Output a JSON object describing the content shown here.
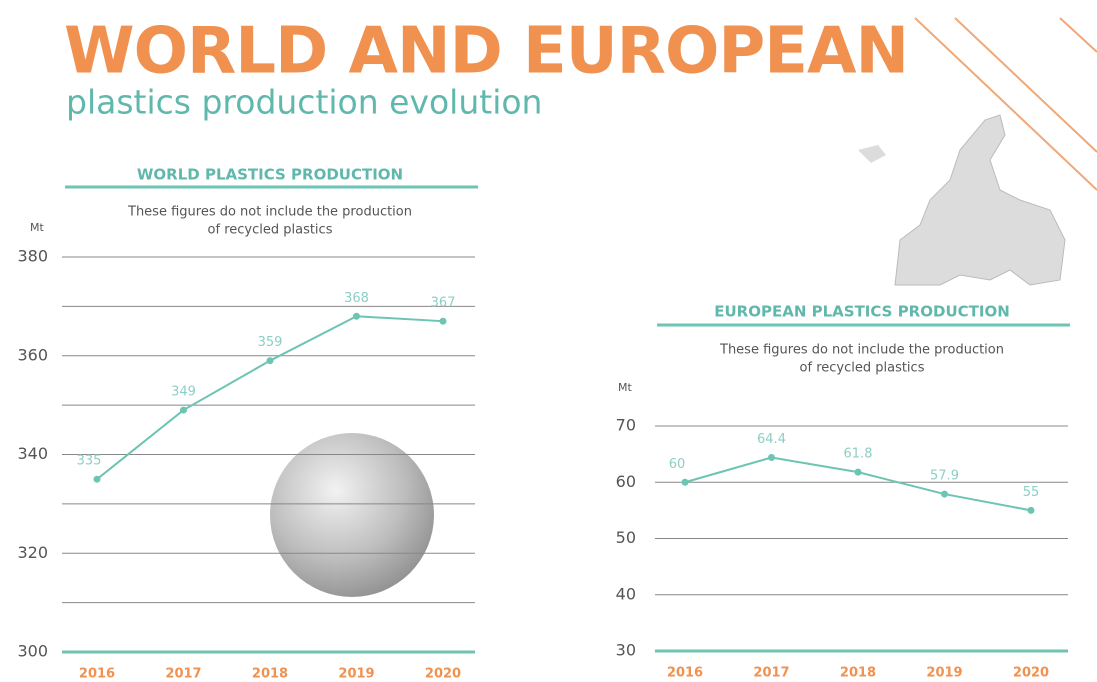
{
  "header": {
    "title": "WORLD AND EUROPEAN",
    "subtitle": "plastics production evolution"
  },
  "chart_data": [
    {
      "type": "line",
      "title": "WORLD PLASTICS PRODUCTION",
      "subtitle": [
        "These figures do not include the production",
        "of recycled plastics"
      ],
      "y_label": "Mt",
      "categories": [
        "2016",
        "2017",
        "2018",
        "2019",
        "2020"
      ],
      "values": [
        335,
        349,
        359,
        368,
        367
      ],
      "color": "#6cc4b3",
      "ylim": [
        300,
        380
      ],
      "yticks": [
        300,
        320,
        340,
        360,
        380
      ],
      "minor_grid": [
        310,
        330,
        350,
        370
      ],
      "grid": true
    },
    {
      "type": "line",
      "title": "EUROPEAN PLASTICS PRODUCTION",
      "subtitle": [
        "These figures do not include the production",
        "of recycled plastics"
      ],
      "y_label": "Mt",
      "categories": [
        "2016",
        "2017",
        "2018",
        "2019",
        "2020"
      ],
      "values": [
        60,
        64.4,
        61.8,
        57.9,
        55
      ],
      "color": "#6cc4b3",
      "ylim": [
        30,
        70
      ],
      "yticks": [
        30,
        40,
        50,
        60,
        70
      ],
      "grid": true
    }
  ]
}
